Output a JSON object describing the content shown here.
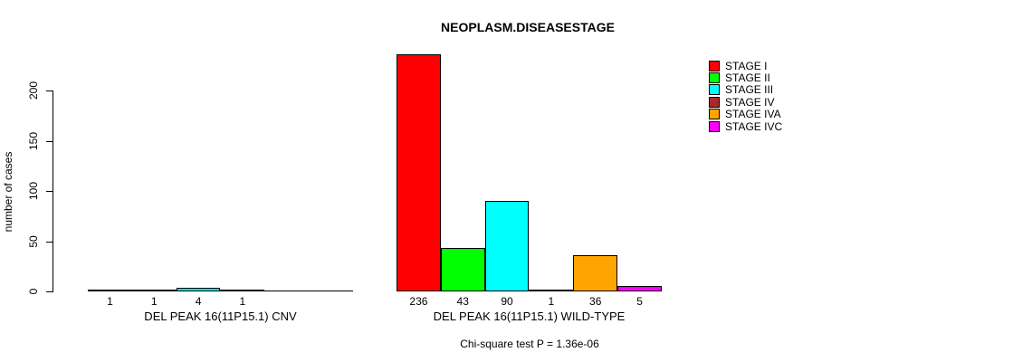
{
  "chart_data": {
    "type": "bar",
    "title": "NEOPLASM.DISEASESTAGE",
    "ylabel": "number of cases",
    "yticks": [
      0,
      50,
      100,
      150,
      200
    ],
    "ylim": [
      0,
      240
    ],
    "grid": false,
    "legend_position": "right",
    "stages": [
      {
        "label": "STAGE I",
        "color": "#FF0000"
      },
      {
        "label": "STAGE II",
        "color": "#00FF00"
      },
      {
        "label": "STAGE III",
        "color": "#00FFFF"
      },
      {
        "label": "STAGE IV",
        "color": "#A52A2A"
      },
      {
        "label": "STAGE IVA",
        "color": "#FFA500"
      },
      {
        "label": "STAGE IVC",
        "color": "#FF00FF"
      }
    ],
    "groups": [
      {
        "label": "DEL PEAK 16(11P15.1) CNV",
        "values": [
          1,
          1,
          4,
          1,
          0,
          0
        ],
        "bar_labels": [
          "1",
          "1",
          "4",
          "1",
          "",
          ""
        ]
      },
      {
        "label": "DEL PEAK 16(11P15.1) WILD-TYPE",
        "values": [
          236,
          43,
          90,
          1,
          36,
          5
        ],
        "bar_labels": [
          "236",
          "43",
          "90",
          "1",
          "36",
          "5"
        ]
      }
    ],
    "annotation": "Chi-square test P = 1.36e-06"
  }
}
